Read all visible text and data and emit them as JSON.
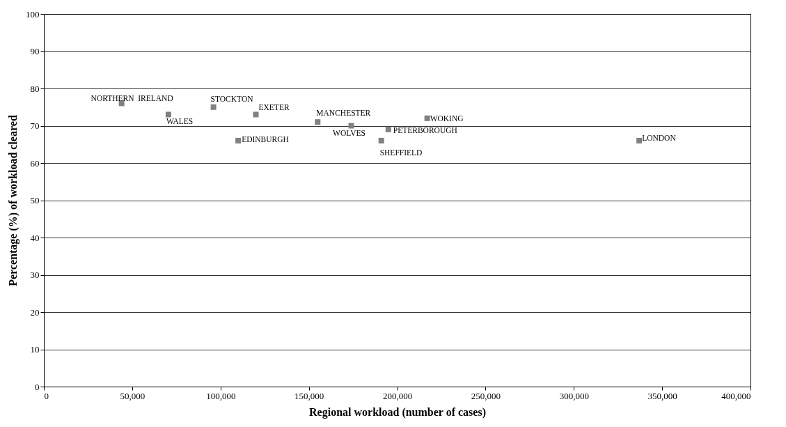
{
  "chart_data": {
    "type": "scatter",
    "xlabel": "Regional workload (number of cases)",
    "ylabel": "Percentage (%) of workload cleared",
    "x": [
      44000,
      70500,
      96000,
      120000,
      110000,
      155000,
      174000,
      195000,
      191000,
      217000,
      337000
    ],
    "values": [
      76,
      73,
      75,
      73,
      66,
      71,
      70,
      69,
      66,
      72,
      66
    ],
    "color": "#808080",
    "marker": "square",
    "grid": "y",
    "xlim": [
      0,
      400000
    ],
    "xticks": [
      {
        "value": 0,
        "label": "0"
      },
      {
        "value": 50000,
        "label": "50,000"
      },
      {
        "value": 100000,
        "label": "100,000"
      },
      {
        "value": 150000,
        "label": "150,000"
      },
      {
        "value": 200000,
        "label": "200,000"
      },
      {
        "value": 250000,
        "label": "250,000"
      },
      {
        "value": 300000,
        "label": "300,000"
      },
      {
        "value": 350000,
        "label": "350,000"
      },
      {
        "value": 400000,
        "label": "400,000"
      }
    ],
    "ylim": [
      0,
      100
    ],
    "yticks": [
      0,
      10,
      20,
      30,
      40,
      50,
      60,
      70,
      80,
      90,
      100
    ],
    "annotations": [
      {
        "text": "NORTHERN  IRELAND",
        "x": 44000,
        "y": 76
      },
      {
        "text": "WALES",
        "x": 70500,
        "y": 73
      },
      {
        "text": "STOCKTON",
        "x": 96000,
        "y": 75
      },
      {
        "text": "EXETER",
        "x": 120000,
        "y": 73
      },
      {
        "text": "EDINBURGH",
        "x": 110000,
        "y": 66
      },
      {
        "text": "MANCHESTER",
        "x": 155000,
        "y": 71
      },
      {
        "text": "WOLVES",
        "x": 174000,
        "y": 70
      },
      {
        "text": "PETERBOROUGH",
        "x": 195000,
        "y": 69
      },
      {
        "text": "SHEFFIELD",
        "x": 191000,
        "y": 66
      },
      {
        "text": "WOKING",
        "x": 217000,
        "y": 72
      },
      {
        "text": "LONDON",
        "x": 337000,
        "y": 66
      }
    ]
  }
}
